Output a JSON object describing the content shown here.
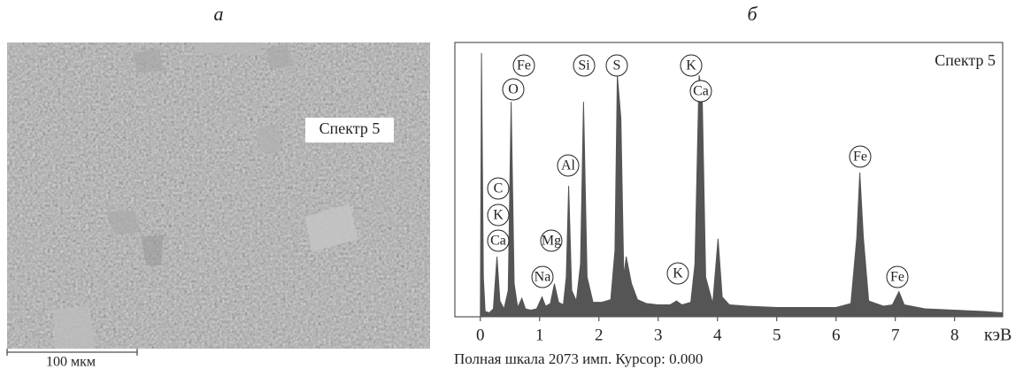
{
  "panel_a": {
    "label": "а",
    "spot_label": "Спектр 5",
    "scale_bar": "100 мкм"
  },
  "chart_data": {
    "type": "area",
    "panel_label": "б",
    "title": "Спектр 5",
    "x_label": "кэВ",
    "footer": "Полная шкала 2073 имп. Курсор: 0.000",
    "color": "#555555",
    "xlim": [
      -0.43,
      8.81
    ],
    "ylim": [
      0,
      2073
    ],
    "xticks": [
      0,
      1,
      2,
      3,
      4,
      5,
      6,
      7,
      8
    ],
    "x": [
      0.0,
      0.02,
      0.05,
      0.08,
      0.15,
      0.22,
      0.28,
      0.33,
      0.4,
      0.47,
      0.52,
      0.57,
      0.63,
      0.7,
      0.76,
      0.85,
      0.95,
      1.04,
      1.1,
      1.18,
      1.25,
      1.32,
      1.4,
      1.45,
      1.49,
      1.54,
      1.62,
      1.69,
      1.74,
      1.8,
      1.9,
      2.05,
      2.2,
      2.27,
      2.31,
      2.37,
      2.42,
      2.46,
      2.55,
      2.65,
      2.8,
      3.0,
      3.2,
      3.31,
      3.4,
      3.55,
      3.62,
      3.69,
      3.74,
      3.8,
      3.92,
      4.01,
      4.08,
      4.2,
      4.5,
      5.0,
      5.5,
      6.0,
      6.25,
      6.35,
      6.4,
      6.46,
      6.55,
      6.8,
      6.95,
      7.06,
      7.15,
      7.5,
      8.0,
      8.5,
      8.8
    ],
    "values": [
      0,
      1993,
      300,
      40,
      30,
      60,
      455,
      120,
      60,
      200,
      1625,
      250,
      70,
      140,
      60,
      50,
      60,
      150,
      80,
      100,
      250,
      110,
      90,
      300,
      990,
      200,
      120,
      400,
      1625,
      300,
      110,
      110,
      130,
      500,
      1825,
      1500,
      300,
      455,
      250,
      130,
      100,
      90,
      90,
      120,
      90,
      110,
      400,
      1825,
      1700,
      300,
      100,
      590,
      150,
      90,
      80,
      70,
      70,
      70,
      100,
      600,
      1090,
      600,
      120,
      80,
      90,
      190,
      90,
      60,
      50,
      40,
      30
    ],
    "annotations": [
      "Fe",
      "O",
      "Si",
      "S",
      "K",
      "Ca",
      "Al",
      "C",
      "K",
      "Ca",
      "Mg",
      "Na",
      "K",
      "Fe",
      "Fe"
    ]
  }
}
